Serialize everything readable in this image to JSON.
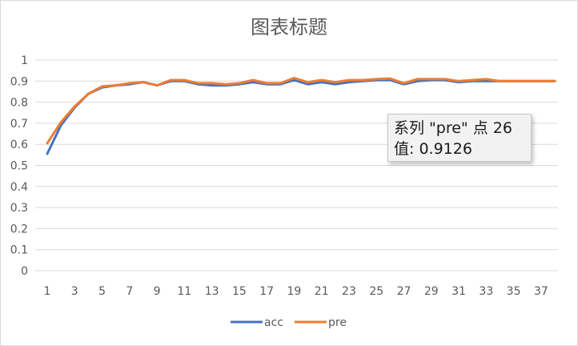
{
  "chart_data": {
    "type": "line",
    "title": "图表标题",
    "xlabel": "",
    "ylabel": "",
    "x": [
      1,
      2,
      3,
      4,
      5,
      6,
      7,
      8,
      9,
      10,
      11,
      12,
      13,
      14,
      15,
      16,
      17,
      18,
      19,
      20,
      21,
      22,
      23,
      24,
      25,
      26,
      27,
      28,
      29,
      30,
      31,
      32,
      33,
      34,
      35,
      36,
      37,
      38
    ],
    "x_tick_labels": [
      "1",
      "3",
      "5",
      "7",
      "9",
      "11",
      "13",
      "15",
      "17",
      "19",
      "21",
      "23",
      "25",
      "27",
      "29",
      "31",
      "33",
      "35",
      "37"
    ],
    "y_tick_labels": [
      "0",
      "0.1",
      "0.2",
      "0.3",
      "0.4",
      "0.5",
      "0.6",
      "0.7",
      "0.8",
      "0.9",
      "1"
    ],
    "ylim": [
      0,
      1
    ],
    "grid": true,
    "legend_position": "bottom",
    "series": [
      {
        "name": "acc",
        "color": "#4472C4",
        "values": [
          0.555,
          0.69,
          0.775,
          0.84,
          0.87,
          0.88,
          0.885,
          0.895,
          0.88,
          0.9,
          0.9,
          0.885,
          0.88,
          0.88,
          0.885,
          0.895,
          0.885,
          0.885,
          0.905,
          0.885,
          0.895,
          0.885,
          0.895,
          0.9,
          0.905,
          0.905,
          0.885,
          0.9,
          0.905,
          0.905,
          0.895,
          0.9,
          0.9,
          0.9,
          0.9,
          0.9,
          0.9,
          0.9
        ]
      },
      {
        "name": "pre",
        "color": "#ED7D31",
        "values": [
          0.605,
          0.705,
          0.78,
          0.84,
          0.875,
          0.88,
          0.89,
          0.895,
          0.88,
          0.905,
          0.905,
          0.89,
          0.89,
          0.885,
          0.89,
          0.905,
          0.89,
          0.89,
          0.915,
          0.895,
          0.905,
          0.895,
          0.905,
          0.905,
          0.91,
          0.9126,
          0.89,
          0.91,
          0.91,
          0.91,
          0.9,
          0.905,
          0.91,
          0.9,
          0.9,
          0.9,
          0.9,
          0.9
        ]
      }
    ]
  },
  "tooltip": {
    "line1": "系列 \"pre\" 点 26",
    "line2": "值: 0.9126"
  }
}
